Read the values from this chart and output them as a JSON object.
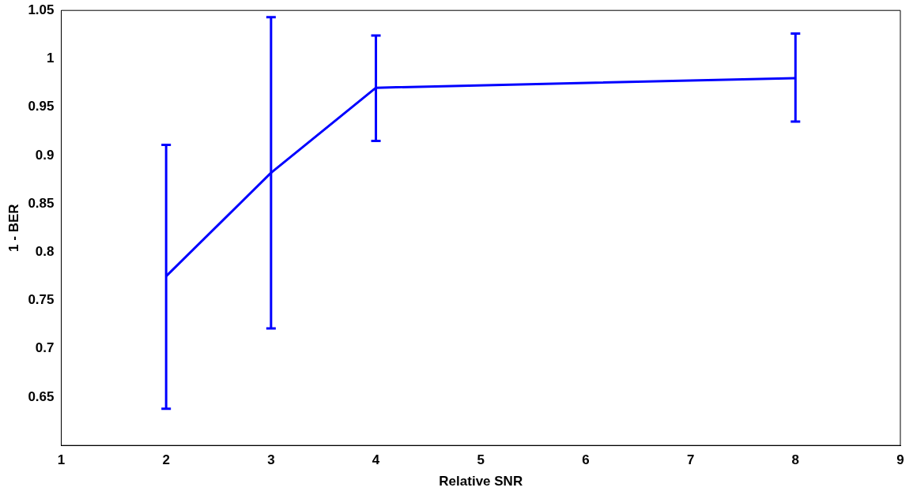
{
  "chart_data": {
    "type": "line",
    "xlabel": "Relative SNR",
    "ylabel": "1 - BER",
    "x": [
      2,
      3,
      4,
      8
    ],
    "series": [
      {
        "color": "#0000ff",
        "values": [
          0.775,
          0.882,
          0.97,
          0.98
        ],
        "errors": [
          [
            0.638,
            0.911
          ],
          [
            0.721,
            1.043
          ],
          [
            0.915,
            1.024
          ],
          [
            0.935,
            1.026
          ]
        ]
      }
    ],
    "xlim": [
      1,
      9
    ],
    "xticks": [
      1,
      2,
      3,
      4,
      5,
      6,
      7,
      8,
      9
    ],
    "ylim": [
      0.6,
      1.05
    ],
    "yticks": [
      0.65,
      0.7,
      0.75,
      0.8,
      0.85,
      0.9,
      0.95,
      1,
      1.05
    ],
    "grid": false,
    "legend": false,
    "marker": "none",
    "line_style": "solid"
  }
}
